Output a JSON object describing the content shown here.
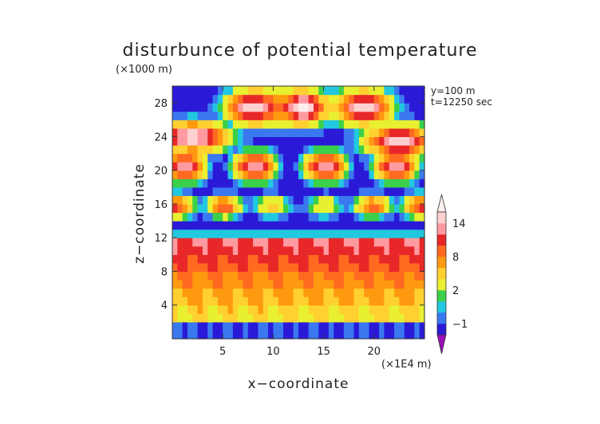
{
  "chart_data": {
    "type": "heatmap",
    "title": "disturbunce of potential temperature",
    "xlabel": "x−coordinate",
    "ylabel": "z−coordinate",
    "x_unit": "(×1E4 m)",
    "y_unit": "(×1000 m)",
    "annotations": [
      "y=100  m",
      "t=12250 sec"
    ],
    "xlim": [
      0,
      25
    ],
    "ylim": [
      0,
      30
    ],
    "x_ticks": [
      5,
      10,
      15,
      20
    ],
    "y_ticks": [
      4,
      8,
      12,
      16,
      20,
      24,
      28
    ],
    "colorbar": {
      "levels": [
        -2,
        -1,
        0,
        1,
        2,
        4,
        6,
        8,
        10,
        12,
        14,
        16
      ],
      "colors": [
        "#9a10b4",
        "#2a1ad8",
        "#3a78f0",
        "#22c8e0",
        "#3ad04a",
        "#e8f030",
        "#ffd030",
        "#ff9a10",
        "#ff6a20",
        "#e82828",
        "#ff9aa0",
        "#ffd0d0",
        "#ffeeee"
      ],
      "tick_labels": [
        "14",
        "8",
        "2",
        "−1"
      ],
      "tick_values": [
        14,
        8,
        2,
        -1
      ],
      "extend": "both"
    },
    "x_gridpoints": 50,
    "z_gridpoints": 30
  }
}
